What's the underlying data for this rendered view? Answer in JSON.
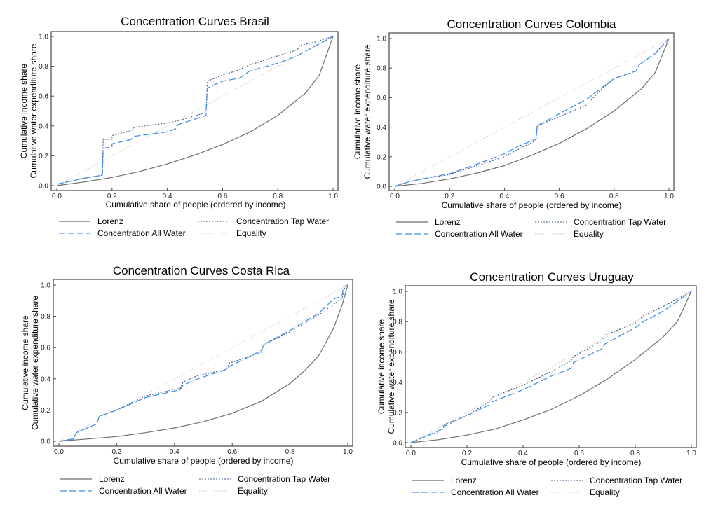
{
  "colors": {
    "lorenz": "#6e6e6e",
    "all_water": "#4a8fe8",
    "tap_water": "#3a5a8a",
    "equality": "#bdbdbd",
    "frame": "#555555"
  },
  "legend": {
    "lorenz": "Lorenz",
    "tap_water": "Concentration Tap Water",
    "all_water": "Concentration All Water",
    "equality": "Equality"
  },
  "chart_data": [
    {
      "type": "line",
      "title": "Concentration Curves Brasil",
      "xlabel": "Cumulative share of people (ordered by income)",
      "ylabel": [
        "Cumulative income share",
        "Cumulative water expenditure share"
      ],
      "xlim": [
        0,
        1
      ],
      "ylim": [
        0,
        1
      ],
      "xticks": [
        "0.0",
        "0.2",
        "0.4",
        "0.6",
        "0.8",
        "1.0"
      ],
      "yticks": [
        "0.0",
        "0.2",
        "0.4",
        "0.6",
        "0.8",
        "1.0"
      ],
      "legend_position": "bottom",
      "series": [
        {
          "name": "Lorenz",
          "key": "lorenz",
          "x": [
            0,
            0.1,
            0.2,
            0.3,
            0.4,
            0.5,
            0.6,
            0.7,
            0.8,
            0.9,
            0.95,
            1.0
          ],
          "y": [
            0,
            0.025,
            0.055,
            0.095,
            0.145,
            0.205,
            0.275,
            0.36,
            0.47,
            0.62,
            0.74,
            1.0
          ]
        },
        {
          "name": "Concentration Tap Water",
          "key": "tap_water",
          "x": [
            0,
            0.05,
            0.1,
            0.165,
            0.168,
            0.2,
            0.2,
            0.27,
            0.28,
            0.4,
            0.45,
            0.54,
            0.545,
            0.6,
            0.65,
            0.7,
            0.8,
            0.87,
            0.88,
            0.93,
            1.0
          ],
          "y": [
            0.01,
            0.03,
            0.05,
            0.07,
            0.31,
            0.31,
            0.335,
            0.37,
            0.39,
            0.42,
            0.44,
            0.49,
            0.7,
            0.74,
            0.77,
            0.81,
            0.87,
            0.91,
            0.94,
            0.96,
            1.0
          ]
        },
        {
          "name": "Concentration All Water",
          "key": "all_water",
          "x": [
            0,
            0.05,
            0.1,
            0.165,
            0.168,
            0.2,
            0.2,
            0.27,
            0.28,
            0.4,
            0.43,
            0.44,
            0.54,
            0.545,
            0.6,
            0.66,
            0.7,
            0.8,
            0.87,
            0.93,
            1.0
          ],
          "y": [
            0.01,
            0.03,
            0.05,
            0.07,
            0.25,
            0.26,
            0.28,
            0.31,
            0.33,
            0.36,
            0.38,
            0.41,
            0.47,
            0.655,
            0.7,
            0.72,
            0.77,
            0.82,
            0.87,
            0.93,
            1.0
          ]
        },
        {
          "name": "Equality",
          "key": "equality",
          "x": [
            0,
            1
          ],
          "y": [
            0,
            1
          ]
        }
      ]
    },
    {
      "type": "line",
      "title": "Concentration Curves Colombia",
      "xlabel": "Cumulative share of people (ordered by income)",
      "ylabel": [
        "Cumulative income share",
        "Cumulative water expenditure share"
      ],
      "xlim": [
        0,
        1
      ],
      "ylim": [
        0,
        1
      ],
      "xticks": [
        "0.0",
        "0.2",
        "0.4",
        "0.6",
        "0.8",
        "1.0"
      ],
      "yticks": [
        "0.0",
        "0.2",
        "0.4",
        "0.6",
        "0.8",
        "1.0"
      ],
      "legend_position": "bottom",
      "series": [
        {
          "name": "Lorenz",
          "key": "lorenz",
          "x": [
            0,
            0.1,
            0.2,
            0.3,
            0.4,
            0.5,
            0.6,
            0.7,
            0.8,
            0.9,
            0.95,
            1.0
          ],
          "y": [
            0,
            0.02,
            0.05,
            0.09,
            0.14,
            0.21,
            0.29,
            0.39,
            0.51,
            0.66,
            0.77,
            1.0
          ]
        },
        {
          "name": "Concentration Tap Water",
          "key": "tap_water",
          "x": [
            0,
            0.05,
            0.1,
            0.2,
            0.3,
            0.4,
            0.45,
            0.515,
            0.52,
            0.6,
            0.7,
            0.75,
            0.8,
            0.88,
            0.89,
            0.95,
            1.0
          ],
          "y": [
            0,
            0.03,
            0.05,
            0.08,
            0.14,
            0.2,
            0.25,
            0.31,
            0.41,
            0.47,
            0.55,
            0.65,
            0.73,
            0.78,
            0.82,
            0.9,
            1.0
          ]
        },
        {
          "name": "Concentration All Water",
          "key": "all_water",
          "x": [
            0,
            0.05,
            0.1,
            0.2,
            0.3,
            0.4,
            0.45,
            0.515,
            0.52,
            0.6,
            0.7,
            0.75,
            0.8,
            0.88,
            0.89,
            0.95,
            1.0
          ],
          "y": [
            0,
            0.03,
            0.05,
            0.085,
            0.15,
            0.22,
            0.27,
            0.32,
            0.41,
            0.49,
            0.59,
            0.66,
            0.73,
            0.78,
            0.82,
            0.9,
            1.0
          ]
        },
        {
          "name": "Equality",
          "key": "equality",
          "x": [
            0,
            1
          ],
          "y": [
            0,
            1
          ]
        }
      ]
    },
    {
      "type": "line",
      "title": "Concentration Curves Costa Rica",
      "xlabel": "Cumulative share of people (ordered by income)",
      "ylabel": [
        "Cumulative income share",
        "Cumulative water expenditure share"
      ],
      "xlim": [
        0,
        1
      ],
      "ylim": [
        0,
        1
      ],
      "xticks": [
        "0.0",
        "0.2",
        "0.4",
        "0.6",
        "0.8",
        "1.0"
      ],
      "yticks": [
        "0.0",
        "0.2",
        "0.4",
        "0.6",
        "0.8",
        "1.0"
      ],
      "legend_position": "bottom",
      "series": [
        {
          "name": "Lorenz",
          "key": "lorenz",
          "x": [
            0,
            0.1,
            0.2,
            0.3,
            0.4,
            0.5,
            0.6,
            0.7,
            0.8,
            0.85,
            0.9,
            0.95,
            0.98,
            1.0
          ],
          "y": [
            0,
            0.015,
            0.03,
            0.055,
            0.085,
            0.125,
            0.18,
            0.255,
            0.37,
            0.45,
            0.55,
            0.72,
            0.87,
            1.0
          ]
        },
        {
          "name": "Concentration Tap Water",
          "key": "tap_water",
          "x": [
            0,
            0.05,
            0.06,
            0.13,
            0.14,
            0.2,
            0.3,
            0.42,
            0.43,
            0.48,
            0.58,
            0.59,
            0.7,
            0.71,
            0.8,
            0.9,
            0.98,
            0.99,
            1.0
          ],
          "y": [
            0,
            0.015,
            0.055,
            0.11,
            0.16,
            0.2,
            0.29,
            0.34,
            0.38,
            0.42,
            0.46,
            0.5,
            0.57,
            0.62,
            0.7,
            0.81,
            0.915,
            0.99,
            1.0
          ]
        },
        {
          "name": "Concentration All Water",
          "key": "all_water",
          "x": [
            0,
            0.05,
            0.06,
            0.13,
            0.14,
            0.2,
            0.3,
            0.42,
            0.43,
            0.48,
            0.58,
            0.59,
            0.7,
            0.71,
            0.8,
            0.9,
            0.95,
            0.98,
            0.985,
            1.0
          ],
          "y": [
            0,
            0.015,
            0.055,
            0.11,
            0.16,
            0.2,
            0.28,
            0.33,
            0.36,
            0.4,
            0.46,
            0.48,
            0.58,
            0.62,
            0.71,
            0.82,
            0.91,
            0.93,
            0.99,
            1.0
          ]
        },
        {
          "name": "Equality",
          "key": "equality",
          "x": [
            0,
            1
          ],
          "y": [
            0,
            1
          ]
        }
      ]
    },
    {
      "type": "line",
      "title": "Concentration Curves Uruguay",
      "xlabel": "Cumulative share of people (ordered by income)",
      "ylabel": [
        "Cumulative income share",
        "Cumulative water expenditure share"
      ],
      "xlim": [
        0,
        1
      ],
      "ylim": [
        0,
        1
      ],
      "xticks": [
        "0.0",
        "0.2",
        "0.4",
        "0.6",
        "0.8",
        "1.0"
      ],
      "yticks": [
        "0.0",
        "0.2",
        "0.4",
        "0.6",
        "0.8",
        "1.0"
      ],
      "legend_position": "bottom",
      "series": [
        {
          "name": "Lorenz",
          "key": "lorenz",
          "x": [
            0,
            0.1,
            0.2,
            0.3,
            0.4,
            0.5,
            0.6,
            0.7,
            0.8,
            0.9,
            0.95,
            1.0
          ],
          "y": [
            0,
            0.02,
            0.05,
            0.09,
            0.15,
            0.22,
            0.31,
            0.42,
            0.55,
            0.7,
            0.8,
            1.0
          ]
        },
        {
          "name": "Concentration Tap Water",
          "key": "tap_water",
          "x": [
            0,
            0.05,
            0.11,
            0.12,
            0.2,
            0.28,
            0.29,
            0.4,
            0.5,
            0.57,
            0.58,
            0.68,
            0.69,
            0.8,
            0.83,
            0.9,
            1.0
          ],
          "y": [
            0,
            0.04,
            0.08,
            0.11,
            0.18,
            0.27,
            0.3,
            0.38,
            0.47,
            0.54,
            0.57,
            0.67,
            0.71,
            0.79,
            0.84,
            0.9,
            1.0
          ]
        },
        {
          "name": "Concentration All Water",
          "key": "all_water",
          "x": [
            0,
            0.05,
            0.11,
            0.12,
            0.2,
            0.28,
            0.29,
            0.4,
            0.5,
            0.57,
            0.58,
            0.68,
            0.69,
            0.8,
            0.83,
            0.9,
            1.0
          ],
          "y": [
            0,
            0.04,
            0.09,
            0.12,
            0.18,
            0.25,
            0.27,
            0.35,
            0.44,
            0.49,
            0.53,
            0.62,
            0.65,
            0.76,
            0.8,
            0.87,
            1.0
          ]
        },
        {
          "name": "Equality",
          "key": "equality",
          "x": [
            0,
            1
          ],
          "y": [
            0,
            1
          ]
        }
      ]
    }
  ]
}
